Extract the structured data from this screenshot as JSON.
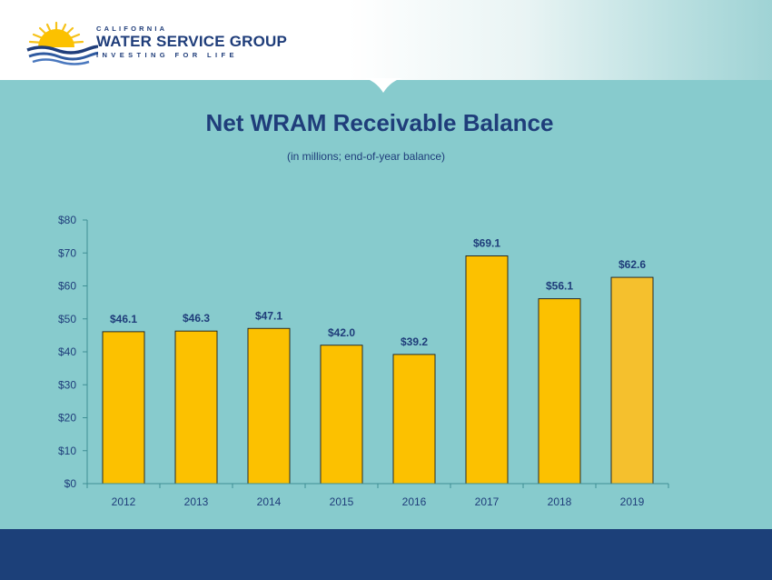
{
  "brand": {
    "top_line": "CALIFORNIA",
    "name": "WATER SERVICE GROUP",
    "tagline": "INVESTING FOR LIFE"
  },
  "colors": {
    "background": "#87cbcd",
    "navy": "#1c4079",
    "bar": "#fcc100",
    "bar_highlight": "#f5c02d",
    "axis": "#3f8f95"
  },
  "chart_data": {
    "type": "bar",
    "title": "Net WRAM Receivable Balance",
    "subtitle": "(in millions; end-of-year balance)",
    "xlabel": "",
    "ylabel": "",
    "categories": [
      "2012",
      "2013",
      "2014",
      "2015",
      "2016",
      "2017",
      "2018",
      "2019"
    ],
    "values": [
      46.1,
      46.3,
      47.1,
      42.0,
      39.2,
      69.1,
      56.1,
      62.6
    ],
    "data_labels": [
      "$46.1",
      "$46.3",
      "$47.1",
      "$42.0",
      "$39.2",
      "$69.1",
      "$56.1",
      "$62.6"
    ],
    "ylim": [
      0,
      80
    ],
    "yticks": [
      0,
      10,
      20,
      30,
      40,
      50,
      60,
      70,
      80
    ],
    "ytick_labels": [
      "$0",
      "$10",
      "$20",
      "$30",
      "$40",
      "$50",
      "$60",
      "$70",
      "$80"
    ],
    "grid": false,
    "legend": "none"
  }
}
